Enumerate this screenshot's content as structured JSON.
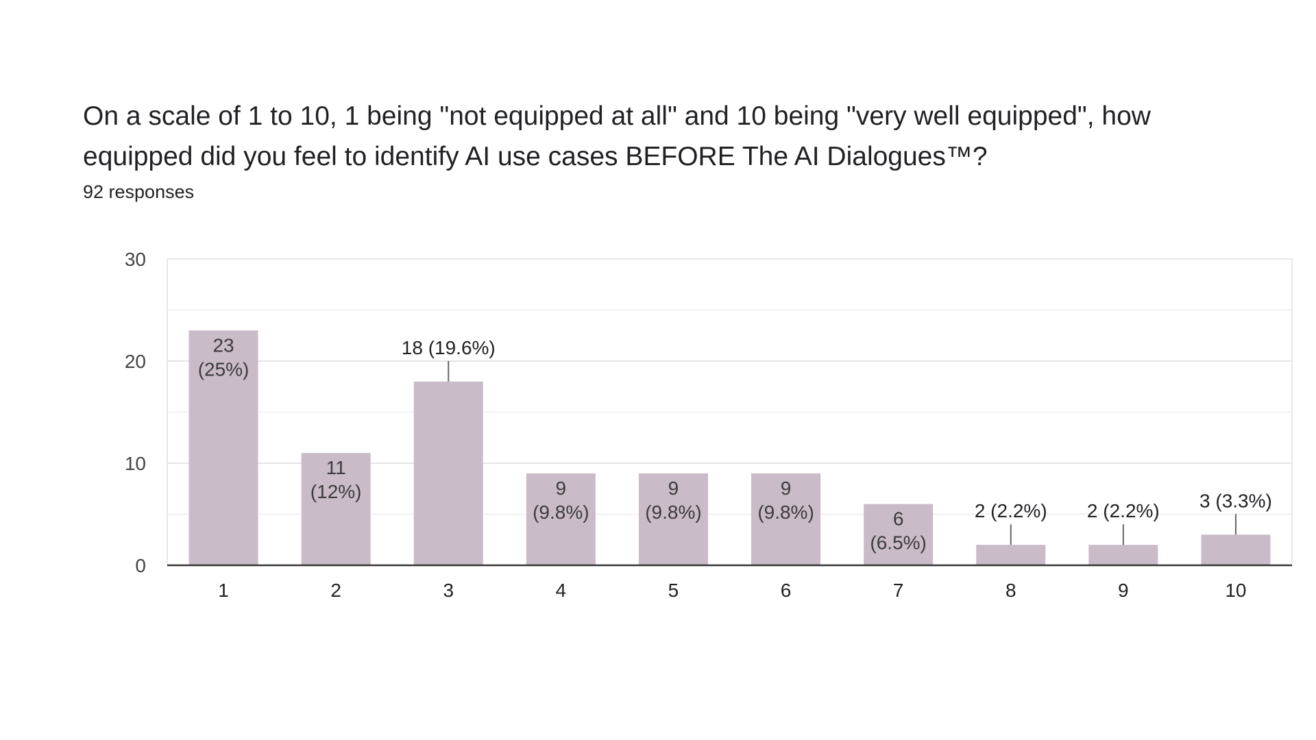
{
  "question": {
    "title": "On a scale of 1 to 10, 1 being \"not equipped at all\" and 10 being \"very well equipped\", how equipped did you feel to identify AI use cases  BEFORE The AI Dialogues™?",
    "responses": "92 responses"
  },
  "colors": {
    "bar": "#c9bbc8",
    "text": "#202124",
    "grid": "#e8e8e8",
    "axis": "#333333"
  },
  "chart_data": {
    "type": "bar",
    "title": "",
    "xlabel": "",
    "ylabel": "",
    "categories": [
      "1",
      "2",
      "3",
      "4",
      "5",
      "6",
      "7",
      "8",
      "9",
      "10"
    ],
    "values": [
      23,
      11,
      18,
      9,
      9,
      9,
      6,
      2,
      2,
      3
    ],
    "percents": [
      "25%",
      "12%",
      "19.6%",
      "9.8%",
      "9.8%",
      "9.8%",
      "6.5%",
      "2.2%",
      "2.2%",
      "3.3%"
    ],
    "label_inside": [
      true,
      true,
      false,
      true,
      true,
      true,
      true,
      false,
      false,
      false
    ],
    "ylim": [
      0,
      30
    ],
    "yticks": [
      0,
      10,
      20,
      30
    ],
    "grid": true,
    "legend": "none"
  }
}
